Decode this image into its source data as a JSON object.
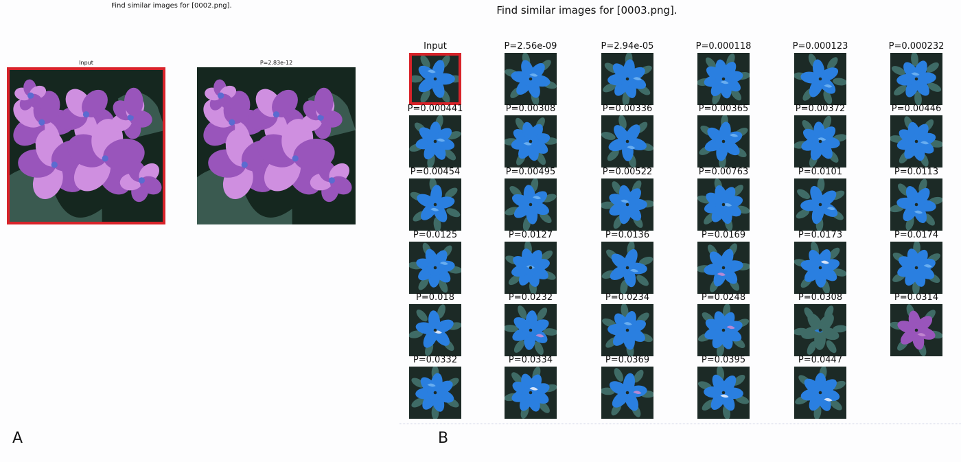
{
  "panel_a": {
    "title": "Find similar images for [0002.png].",
    "letter": "A",
    "images": [
      {
        "label": "Input",
        "selected": true
      },
      {
        "label": "P=2.83e-12",
        "selected": false
      }
    ]
  },
  "panel_b": {
    "title": "Find similar images for [0003.png].",
    "letter": "B",
    "tiles": [
      {
        "label": "Input",
        "style": "blue",
        "selected": true
      },
      {
        "label": "P=2.56e-09",
        "style": "blue"
      },
      {
        "label": "P=2.94e-05",
        "style": "blue"
      },
      {
        "label": "P=0.000118",
        "style": "blue"
      },
      {
        "label": "P=0.000123",
        "style": "blue"
      },
      {
        "label": "P=0.000232",
        "style": "blue"
      },
      {
        "label": "P=0.000441",
        "style": "blue"
      },
      {
        "label": "P=0.00308",
        "style": "blue"
      },
      {
        "label": "P=0.00336",
        "style": "blue"
      },
      {
        "label": "P=0.00365",
        "style": "blue"
      },
      {
        "label": "P=0.00372",
        "style": "blue"
      },
      {
        "label": "P=0.00446",
        "style": "blue"
      },
      {
        "label": "P=0.00454",
        "style": "blue"
      },
      {
        "label": "P=0.00495",
        "style": "blue"
      },
      {
        "label": "P=0.00522",
        "style": "blue"
      },
      {
        "label": "P=0.00763",
        "style": "blue"
      },
      {
        "label": "P=0.0101",
        "style": "blue"
      },
      {
        "label": "P=0.0113",
        "style": "blue"
      },
      {
        "label": "P=0.0125",
        "style": "blue"
      },
      {
        "label": "P=0.0127",
        "style": "blue"
      },
      {
        "label": "P=0.0136",
        "style": "blue"
      },
      {
        "label": "P=0.0169",
        "style": "pink"
      },
      {
        "label": "P=0.0173",
        "style": "white"
      },
      {
        "label": "P=0.0174",
        "style": "blue"
      },
      {
        "label": "P=0.018",
        "style": "white"
      },
      {
        "label": "P=0.0232",
        "style": "pink"
      },
      {
        "label": "P=0.0234",
        "style": "blue"
      },
      {
        "label": "P=0.0248",
        "style": "pink"
      },
      {
        "label": "P=0.0308",
        "style": "teal"
      },
      {
        "label": "P=0.0314",
        "style": "purple"
      },
      {
        "label": "P=0.0332",
        "style": "blue"
      },
      {
        "label": "P=0.0334",
        "style": "white"
      },
      {
        "label": "P=0.0369",
        "style": "pink"
      },
      {
        "label": "P=0.0395",
        "style": "white"
      },
      {
        "label": "P=0.0447",
        "style": "white"
      }
    ]
  },
  "colors": {
    "bg": "#1c2a26",
    "leaf": "#3f6b66",
    "blue": "#2a7fe0",
    "light_blue": "#6fb2f2",
    "pink": "#c58bd3",
    "purple": "#9955bb",
    "lilac": "#cf8fe0",
    "white": "#e8eefc",
    "select": "#d8232a"
  }
}
